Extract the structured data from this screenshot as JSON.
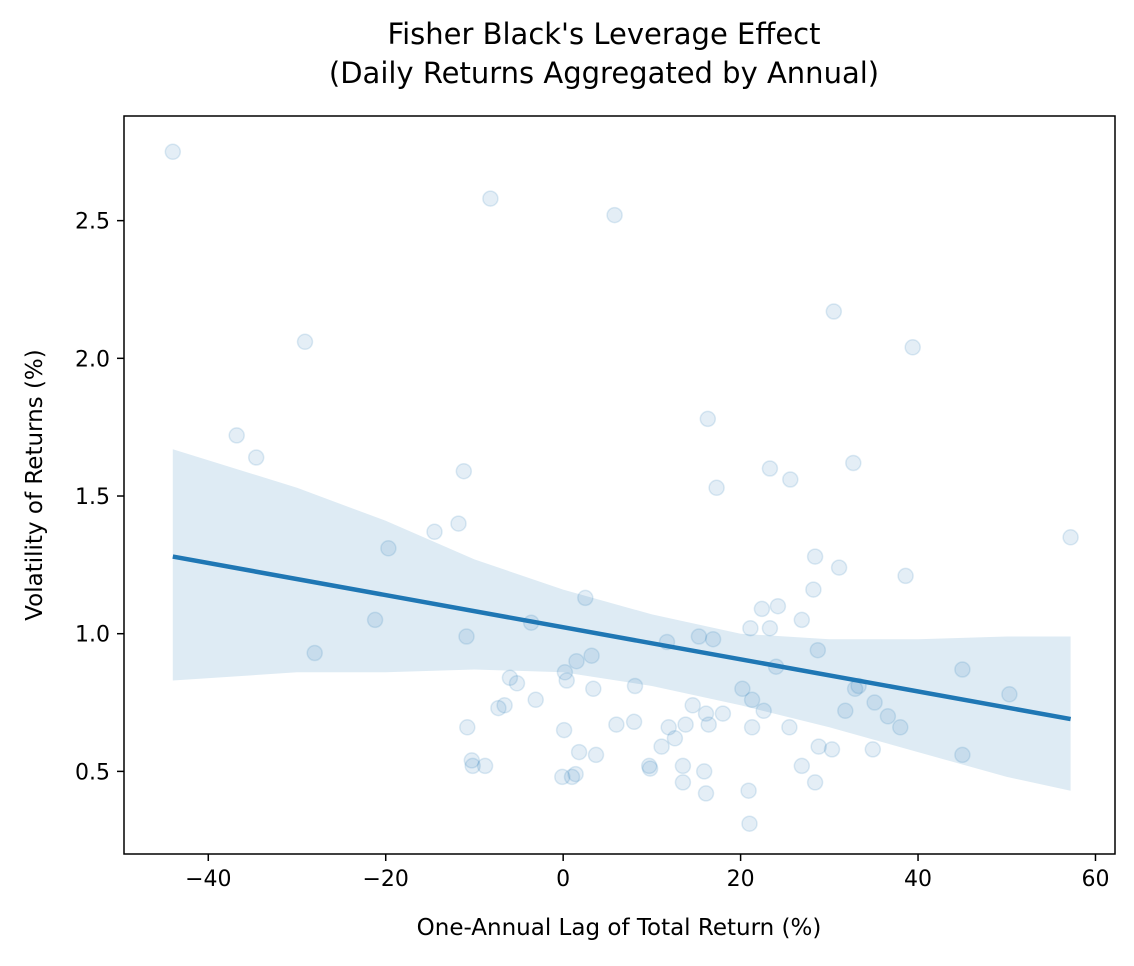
{
  "chart_data": {
    "type": "scatter",
    "title": "Fisher Black's Leverage Effect\n(Daily Returns Aggregated by Annual)",
    "title_lines": [
      "Fisher Black's Leverage Effect",
      "(Daily Returns Aggregated by Annual)"
    ],
    "xlabel": "One-Annual Lag of Total Return (%)",
    "ylabel": "Volatility of Returns (%)",
    "xlim": [
      -49.5,
      62.2
    ],
    "ylim": [
      0.2,
      2.88
    ],
    "xticks": [
      -40,
      -20,
      0,
      20,
      40,
      60
    ],
    "xtick_labels": [
      "−40",
      "−20",
      "0",
      "20",
      "40",
      "60"
    ],
    "yticks": [
      0.5,
      1.0,
      1.5,
      2.0,
      2.5
    ],
    "ytick_labels": [
      "0.5",
      "1.0",
      "1.5",
      "2.0",
      "2.5"
    ],
    "grid": false,
    "point_color": "#1f77b4",
    "point_alpha": 0.12,
    "line_color": "#1f77b4",
    "band_color": "#1f77b4",
    "points": [
      {
        "x": -44.0,
        "y": 2.75
      },
      {
        "x": -8.2,
        "y": 2.58
      },
      {
        "x": 5.8,
        "y": 2.52
      },
      {
        "x": -29.1,
        "y": 2.06
      },
      {
        "x": 30.5,
        "y": 2.17
      },
      {
        "x": 39.4,
        "y": 2.04
      },
      {
        "x": -36.8,
        "y": 1.72
      },
      {
        "x": -34.6,
        "y": 1.64
      },
      {
        "x": 16.3,
        "y": 1.78
      },
      {
        "x": 23.3,
        "y": 1.6
      },
      {
        "x": 32.7,
        "y": 1.62
      },
      {
        "x": 17.3,
        "y": 1.53
      },
      {
        "x": 25.6,
        "y": 1.56
      },
      {
        "x": -11.2,
        "y": 1.59
      },
      {
        "x": -14.5,
        "y": 1.37
      },
      {
        "x": -11.8,
        "y": 1.4
      },
      {
        "x": -19.7,
        "y": 1.31
      },
      {
        "x": 57.2,
        "y": 1.35
      },
      {
        "x": 28.4,
        "y": 1.28
      },
      {
        "x": 31.1,
        "y": 1.24
      },
      {
        "x": 38.6,
        "y": 1.21
      },
      {
        "x": 28.2,
        "y": 1.16
      },
      {
        "x": 2.5,
        "y": 1.13
      },
      {
        "x": -21.2,
        "y": 1.05
      },
      {
        "x": -3.6,
        "y": 1.04
      },
      {
        "x": 22.4,
        "y": 1.09
      },
      {
        "x": 24.2,
        "y": 1.1
      },
      {
        "x": 26.9,
        "y": 1.05
      },
      {
        "x": 21.1,
        "y": 1.02
      },
      {
        "x": 23.3,
        "y": 1.02
      },
      {
        "x": -10.9,
        "y": 0.99
      },
      {
        "x": 11.7,
        "y": 0.97
      },
      {
        "x": 15.3,
        "y": 0.99
      },
      {
        "x": 16.9,
        "y": 0.98
      },
      {
        "x": -28.0,
        "y": 0.93
      },
      {
        "x": 28.7,
        "y": 0.94
      },
      {
        "x": 1.5,
        "y": 0.9
      },
      {
        "x": 3.2,
        "y": 0.92
      },
      {
        "x": 24.0,
        "y": 0.88
      },
      {
        "x": 45.0,
        "y": 0.87
      },
      {
        "x": 0.2,
        "y": 0.86
      },
      {
        "x": 0.4,
        "y": 0.83
      },
      {
        "x": -6.0,
        "y": 0.84
      },
      {
        "x": -5.2,
        "y": 0.82
      },
      {
        "x": 3.4,
        "y": 0.8
      },
      {
        "x": 8.1,
        "y": 0.81
      },
      {
        "x": 20.2,
        "y": 0.8
      },
      {
        "x": 32.9,
        "y": 0.8
      },
      {
        "x": 33.3,
        "y": 0.81
      },
      {
        "x": 50.3,
        "y": 0.78
      },
      {
        "x": -3.1,
        "y": 0.76
      },
      {
        "x": 21.3,
        "y": 0.76
      },
      {
        "x": 35.1,
        "y": 0.75
      },
      {
        "x": -7.3,
        "y": 0.73
      },
      {
        "x": -6.6,
        "y": 0.74
      },
      {
        "x": 14.6,
        "y": 0.74
      },
      {
        "x": 16.1,
        "y": 0.71
      },
      {
        "x": 18.0,
        "y": 0.71
      },
      {
        "x": 22.6,
        "y": 0.72
      },
      {
        "x": 31.8,
        "y": 0.72
      },
      {
        "x": 36.6,
        "y": 0.7
      },
      {
        "x": -10.8,
        "y": 0.66
      },
      {
        "x": 6.0,
        "y": 0.67
      },
      {
        "x": 8.0,
        "y": 0.68
      },
      {
        "x": 11.9,
        "y": 0.66
      },
      {
        "x": 13.8,
        "y": 0.67
      },
      {
        "x": 16.4,
        "y": 0.67
      },
      {
        "x": 21.3,
        "y": 0.66
      },
      {
        "x": 25.5,
        "y": 0.66
      },
      {
        "x": 38.0,
        "y": 0.66
      },
      {
        "x": 0.1,
        "y": 0.65
      },
      {
        "x": 12.6,
        "y": 0.62
      },
      {
        "x": 11.1,
        "y": 0.59
      },
      {
        "x": 1.8,
        "y": 0.57
      },
      {
        "x": 3.7,
        "y": 0.56
      },
      {
        "x": 28.8,
        "y": 0.59
      },
      {
        "x": 30.3,
        "y": 0.58
      },
      {
        "x": 34.9,
        "y": 0.58
      },
      {
        "x": 45.0,
        "y": 0.56
      },
      {
        "x": -10.3,
        "y": 0.54
      },
      {
        "x": -10.2,
        "y": 0.52
      },
      {
        "x": -8.8,
        "y": 0.52
      },
      {
        "x": 9.7,
        "y": 0.52
      },
      {
        "x": 9.8,
        "y": 0.51
      },
      {
        "x": 13.5,
        "y": 0.52
      },
      {
        "x": 15.9,
        "y": 0.5
      },
      {
        "x": 26.9,
        "y": 0.52
      },
      {
        "x": -0.1,
        "y": 0.48
      },
      {
        "x": 1.0,
        "y": 0.48
      },
      {
        "x": 1.4,
        "y": 0.49
      },
      {
        "x": 13.5,
        "y": 0.46
      },
      {
        "x": 28.4,
        "y": 0.46
      },
      {
        "x": 16.1,
        "y": 0.42
      },
      {
        "x": 20.9,
        "y": 0.43
      },
      {
        "x": 21.0,
        "y": 0.31
      }
    ],
    "regression_line": {
      "x": [
        -44.0,
        57.2
      ],
      "y": [
        1.28,
        0.69
      ]
    },
    "confidence_band": {
      "x": [
        -44.0,
        -30.0,
        -20.0,
        -10.0,
        0.0,
        10.0,
        20.0,
        30.0,
        40.0,
        50.0,
        57.2
      ],
      "upper": [
        1.67,
        1.53,
        1.41,
        1.27,
        1.16,
        1.07,
        1.0,
        0.98,
        0.98,
        0.99,
        0.99
      ],
      "lower": [
        0.83,
        0.86,
        0.86,
        0.87,
        0.86,
        0.81,
        0.74,
        0.66,
        0.57,
        0.48,
        0.43
      ]
    }
  }
}
